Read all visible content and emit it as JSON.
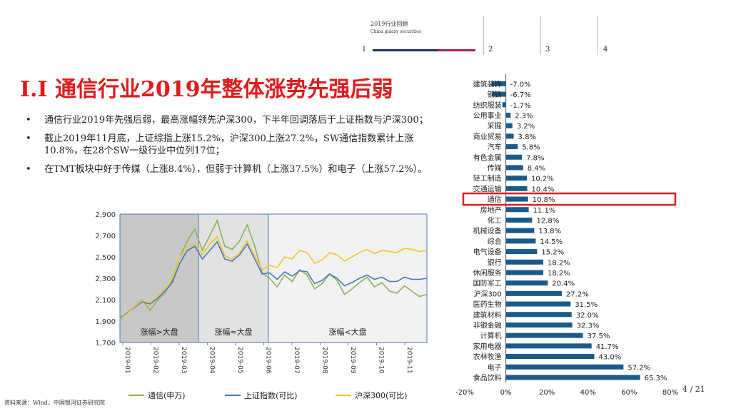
{
  "header": {
    "section_title": "2019行业回顾",
    "section_subtitle": "China galaxy securities",
    "nav": [
      "I",
      "2",
      "3",
      "4"
    ]
  },
  "title": "I.I 通信行业2019年整体涨势先强后弱",
  "bullets": [
    "通信行业2019年先强后弱，最高涨幅领先沪深300，下半年回调落后于上证指数与沪深300；",
    "截止2019年11月底，上证综指上涨15.2%，沪深300上涨27.2%，SW通信指数累计上涨10.8%，在28个SW一级行业中位列17位；",
    "在TMT板块中好于传媒（上涨8.4%），但弱于计算机（上涨37.5%）和电子（上涨57.2%）。"
  ],
  "bullet_dot": "•",
  "source": "资料来源：Wind，中国银河证券研究院",
  "page_number": "4 / 21",
  "chart_data": [
    {
      "type": "line",
      "ylim": [
        1700,
        2900
      ],
      "yticks": [
        "2,900",
        "2,700",
        "2,500",
        "2,300",
        "2,100",
        "1,900",
        "1,700"
      ],
      "xticks": [
        "2019-01",
        "2019-02",
        "2019-03",
        "2019-04",
        "2019-05",
        "2019-06",
        "2019-07",
        "2019-08",
        "2019-09",
        "2019-10",
        "2019-11"
      ],
      "regions": [
        {
          "label": "涨幅>大盘",
          "color": "#c8c8c8"
        },
        {
          "label": "涨幅≈大盘",
          "color": "#e2e2e2"
        },
        {
          "label": "涨幅<大盘",
          "color": "#f2f2f2"
        }
      ],
      "series": [
        {
          "name": "通信(申万)",
          "color": "#8db255",
          "values": [
            1910,
            1980,
            2040,
            2100,
            2000,
            2090,
            2160,
            2280,
            2500,
            2650,
            2760,
            2560,
            2700,
            2840,
            2600,
            2570,
            2650,
            2800,
            2600,
            2350,
            2300,
            2220,
            2330,
            2270,
            2380,
            2330,
            2200,
            2250,
            2340,
            2280,
            2150,
            2200,
            2260,
            2310,
            2220,
            2260,
            2180,
            2160,
            2230,
            2180,
            2130,
            2150
          ]
        },
        {
          "name": "上证指数(可比)",
          "color": "#4a78b8",
          "values": [
            1930,
            1975,
            2030,
            2080,
            2060,
            2110,
            2180,
            2260,
            2440,
            2560,
            2600,
            2480,
            2560,
            2640,
            2480,
            2460,
            2520,
            2620,
            2480,
            2340,
            2350,
            2290,
            2360,
            2320,
            2370,
            2360,
            2250,
            2280,
            2340,
            2300,
            2230,
            2260,
            2300,
            2330,
            2290,
            2310,
            2270,
            2270,
            2310,
            2290,
            2290,
            2300
          ]
        },
        {
          "name": "沪深300(可比)",
          "color": "#f2c330",
          "values": [
            1920,
            1970,
            2040,
            2090,
            2070,
            2130,
            2210,
            2300,
            2500,
            2600,
            2620,
            2520,
            2620,
            2690,
            2510,
            2480,
            2540,
            2650,
            2510,
            2380,
            2420,
            2400,
            2500,
            2480,
            2560,
            2540,
            2440,
            2470,
            2540,
            2520,
            2460,
            2500,
            2540,
            2570,
            2530,
            2560,
            2550,
            2540,
            2580,
            2570,
            2550,
            2560
          ]
        }
      ]
    },
    {
      "type": "bar",
      "orientation": "horizontal",
      "xlim": [
        -20,
        80
      ],
      "xticks": [
        "-20%",
        "0%",
        "20%",
        "40%",
        "60%",
        "80%"
      ],
      "highlight": "通信",
      "categories": [
        "建筑装饰",
        "钢铁",
        "纺织服装",
        "公用事业",
        "采掘",
        "商业贸易",
        "汽车",
        "有色金属",
        "传媒",
        "轻工制造",
        "交通运输",
        "通信",
        "房地产",
        "化工",
        "机械设备",
        "综合",
        "电气设备",
        "银行",
        "休闲服务",
        "国防军工",
        "沪深300",
        "医药生物",
        "建筑材料",
        "非银金融",
        "计算机",
        "家用电器",
        "农林牧渔",
        "电子",
        "食品饮料"
      ],
      "values": [
        -7.0,
        -6.7,
        -1.7,
        2.3,
        3.2,
        3.8,
        5.8,
        7.8,
        8.4,
        10.2,
        10.4,
        10.8,
        11.1,
        12.8,
        13.8,
        14.5,
        15.2,
        18.2,
        18.2,
        20.4,
        27.2,
        31.5,
        32.0,
        32.3,
        37.5,
        41.7,
        43.0,
        57.2,
        65.3
      ],
      "labels": [
        "-7.0%",
        "-6.7%",
        "-1.7%",
        "2.3%",
        "3.2%",
        "3.8%",
        "5.8%",
        "7.8%",
        "8.4%",
        "10.2%",
        "10.4%",
        "10.8%",
        "11.1%",
        "12.8%",
        "13.8%",
        "14.5%",
        "15.2%",
        "18.2%",
        "18.2%",
        "20.4%",
        "27.2%",
        "31.5%",
        "32.0%",
        "32.3%",
        "37.5%",
        "41.7%",
        "43.0%",
        "57.2%",
        "65.3%"
      ],
      "bar_color": "#1a5a8a"
    }
  ]
}
